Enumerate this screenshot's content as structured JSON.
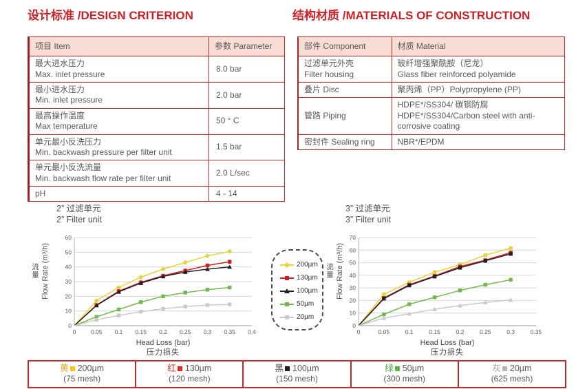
{
  "page": {
    "left_section_title": "设计标准 /DESIGN CRITERION",
    "right_section_title": "结构材质 /MATERIALS OF CONSTRUCTION"
  },
  "design_table": {
    "headers": [
      "项目 Item",
      "参数 Parameter"
    ],
    "rows": [
      {
        "item_cn": "最大进水压力",
        "item_en": "Max. inlet pressure",
        "value": "8.0 bar"
      },
      {
        "item_cn": "最小进水压力",
        "item_en": "Min. inlet pressure",
        "value": "2.0 bar"
      },
      {
        "item_cn": "最高操作温度",
        "item_en": "Max temperature",
        "value": "50 ° C"
      },
      {
        "item_cn": "单元最小反洗压力",
        "item_en": "Min. backwash pressure per filter unit",
        "value": "1.5 bar"
      },
      {
        "item_cn": "单元最小反洗流量",
        "item_en": "Min. backwash flow rate per filter unit",
        "value": "2.0 L/sec"
      },
      {
        "item_cn": "pH",
        "item_en": "",
        "value": "4 - 14"
      }
    ]
  },
  "materials_table": {
    "headers": [
      "部件 Component",
      "材质 Material"
    ],
    "rows": [
      {
        "component_cn": "过滤单元外壳",
        "component_en": "Filter housing",
        "material_cn": "玻纤增强聚酰胺（尼龙）",
        "material_en": "Glass fiber reinforced polyamide"
      },
      {
        "component_cn": "叠片 Disc",
        "component_en": "",
        "material_cn": "聚丙烯（PP）Polypropylene (PP)",
        "material_en": ""
      },
      {
        "component_cn": "管路 Piping",
        "component_en": "",
        "material_cn": "HDPE*/SS304/ 碳钢防腐",
        "material_en": "HDPE*/SS304/Carbon steel with anti-corrosive coating"
      },
      {
        "component_cn": "密封件 Sealing ring",
        "component_en": "",
        "material_cn": "NBR*/EPDM",
        "material_en": ""
      }
    ]
  },
  "chart_data": [
    {
      "type": "line",
      "title_cn": "2”  过滤单元",
      "title_en": "2”  Filter unit",
      "xlabel": "Head Loss (bar)",
      "xlabel_cn": "压力损失",
      "ylabel_cn": "流量",
      "ylabel": "Flow Rate (m³/h)",
      "xlim": [
        0,
        0.4
      ],
      "ylim": [
        0,
        60
      ],
      "ytick_step": 10,
      "grid": "horizontal",
      "xticks": [
        "0",
        "0.05",
        "0.1",
        "0.15",
        "0.2",
        "0.25",
        "0.3",
        "0.35",
        "0.4"
      ],
      "x": [
        0,
        0.05,
        0.1,
        0.15,
        0.2,
        0.25,
        0.3,
        0.35
      ],
      "series": [
        {
          "name": "200µm",
          "color": "#e8d23c",
          "marker": "diamond",
          "values": [
            0,
            17,
            26,
            33,
            38.5,
            43,
            47.5,
            50.5
          ]
        },
        {
          "name": "130µm",
          "color": "#cb2026",
          "marker": "square",
          "values": [
            0,
            14,
            23.5,
            29.5,
            34,
            37.5,
            41,
            43.5
          ]
        },
        {
          "name": "100µm",
          "color": "#231f20",
          "marker": "triangle",
          "values": [
            0,
            13.8,
            23,
            29,
            33.5,
            36.5,
            38.5,
            40
          ]
        },
        {
          "name": "50µm",
          "color": "#74b64e",
          "marker": "square",
          "values": [
            0,
            6,
            11,
            16,
            20,
            22.5,
            24.5,
            26
          ]
        },
        {
          "name": "20µm",
          "color": "#c9c9c9",
          "marker": "square",
          "values": [
            0,
            4,
            7,
            9.5,
            11.5,
            13,
            14,
            14.5
          ]
        }
      ]
    },
    {
      "type": "line",
      "title_cn": "3”  过滤单元",
      "title_en": "3”  Filter unit",
      "xlabel": "Head Loss (bar)",
      "xlabel_cn": "压力损失",
      "ylabel_cn": "流量",
      "ylabel": "Flow Rate (m³/h)",
      "xlim": [
        0,
        0.35
      ],
      "ylim": [
        0,
        70
      ],
      "ytick_step": 10,
      "grid": "horizontal",
      "xticks": [
        "0",
        "0.05",
        "0.1",
        "0.15",
        "0.2",
        "0.25",
        "0.3",
        "0.35"
      ],
      "x": [
        0,
        0.05,
        0.1,
        0.15,
        0.2,
        0.25,
        0.3
      ],
      "series": [
        {
          "name": "200µm",
          "color": "#e8d23c",
          "marker": "square",
          "values": [
            0,
            25,
            34.5,
            42.5,
            48.5,
            56,
            61.5
          ]
        },
        {
          "name": "130µm",
          "color": "#cb2026",
          "marker": "square",
          "values": [
            0,
            22,
            32.5,
            39.5,
            47,
            52,
            58
          ]
        },
        {
          "name": "100µm",
          "color": "#231f20",
          "marker": "square",
          "values": [
            0,
            21.5,
            32,
            39,
            46,
            51.5,
            57
          ]
        },
        {
          "name": "50µm",
          "color": "#74b64e",
          "marker": "square",
          "values": [
            0,
            9,
            17,
            22.5,
            28,
            32.5,
            36.5
          ]
        },
        {
          "name": "20µm",
          "color": "#c9c9c9",
          "marker": "triangle",
          "values": [
            0,
            6,
            9.5,
            13,
            16,
            18.5,
            20.5
          ]
        }
      ]
    }
  ],
  "legend": {
    "entries": [
      {
        "label": "200µm",
        "color": "#e8d23c",
        "marker": "diamond"
      },
      {
        "label": "130µm",
        "color": "#cb2026",
        "marker": "square"
      },
      {
        "label": "100µm",
        "color": "#231f20",
        "marker": "triangle"
      },
      {
        "label": "50µm",
        "color": "#74b64e",
        "marker": "square"
      },
      {
        "label": "20µm",
        "color": "#c9c9c9",
        "marker": "square"
      }
    ]
  },
  "bottom_legend": [
    {
      "char": "黄",
      "char_color": "#e5a321",
      "swatch_color": "#f2c41d",
      "size": "200µm",
      "mesh": "(75 mesh)"
    },
    {
      "char": "红",
      "char_color": "#d42a24",
      "swatch_color": "#e32b22",
      "size": "130µm",
      "mesh": "(120 mesh)"
    },
    {
      "char": "黑",
      "char_color": "#4a4a4a",
      "swatch_color": "#1f1f1f",
      "size": "100µm",
      "mesh": "(150 mesh)"
    },
    {
      "char": "绿",
      "char_color": "#53a843",
      "swatch_color": "#5cb044",
      "size": "50µm",
      "mesh": "(300 mesh)"
    },
    {
      "char": "灰",
      "char_color": "#9d9d9d",
      "swatch_color": "#b5b5b5",
      "size": "20µm",
      "mesh": "(625 mesh)"
    }
  ],
  "colors": {
    "accent_red": "#c4262c",
    "header_fill": "#f7ddd3",
    "text_gray": "#595959",
    "gridline": "#d6d6d6"
  }
}
